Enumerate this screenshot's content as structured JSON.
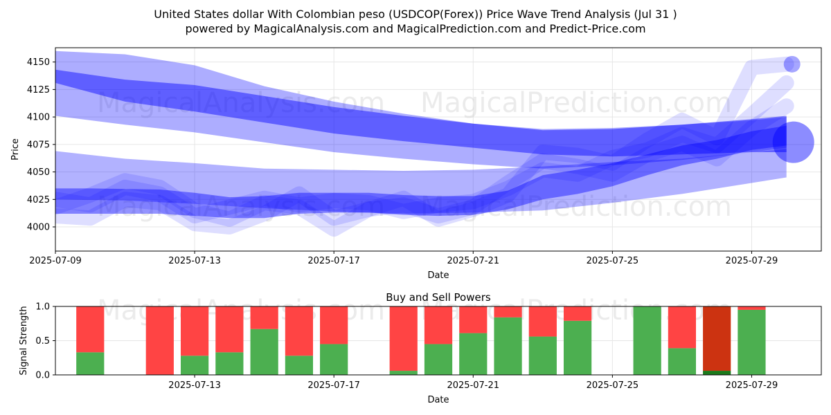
{
  "header": {
    "title_line1": "United States dollar With Colombian peso (USDCOP(Forex)) Price Wave Trend Analysis (Jul 31 )",
    "title_line2": "powered by MagicalAnalysis.com and MagicalPrediction.com and Predict-Price.com"
  },
  "watermarks": {
    "left": "MagicalAnalysis.com",
    "right": "MagicalPrediction.com"
  },
  "colors": {
    "wave": "#0000ff",
    "buy": "#4caf50",
    "sell": "#ff4444",
    "sell_dark": "#cc3311",
    "buy_dark": "#1b7a1b",
    "grid": "#e6e6e6"
  },
  "chart_data": [
    {
      "type": "area",
      "title": "Price Wave Trend",
      "xlabel": "Date",
      "ylabel": "Price",
      "xlim": [
        "2025-07-09",
        "2025-07-31"
      ],
      "ylim": [
        3978,
        4163
      ],
      "xticks": [
        "2025-07-09",
        "2025-07-13",
        "2025-07-17",
        "2025-07-21",
        "2025-07-25",
        "2025-07-29"
      ],
      "yticks": [
        4000,
        4025,
        4050,
        4075,
        4100,
        4125,
        4150
      ],
      "series": [
        {
          "name": "upper-wave-outer",
          "band": true,
          "x": [
            "2025-07-09",
            "2025-07-11",
            "2025-07-13",
            "2025-07-15",
            "2025-07-17",
            "2025-07-19",
            "2025-07-21",
            "2025-07-23",
            "2025-07-25",
            "2025-07-27",
            "2025-07-29",
            "2025-07-30"
          ],
          "upper": [
            4160,
            4157,
            4147,
            4128,
            4114,
            4103,
            4094,
            4089,
            4090,
            4093,
            4097,
            4100
          ],
          "lower": [
            4101,
            4093,
            4086,
            4077,
            4068,
            4062,
            4057,
            4053,
            4056,
            4061,
            4068,
            4072
          ]
        },
        {
          "name": "upper-wave-core",
          "band": true,
          "x": [
            "2025-07-09",
            "2025-07-11",
            "2025-07-13",
            "2025-07-15",
            "2025-07-17",
            "2025-07-19",
            "2025-07-21",
            "2025-07-23",
            "2025-07-25",
            "2025-07-27",
            "2025-07-29",
            "2025-07-30"
          ],
          "upper": [
            4143,
            4134,
            4129,
            4119,
            4109,
            4101,
            4094,
            4088,
            4089,
            4093,
            4098,
            4101
          ],
          "lower": [
            4131,
            4114,
            4105,
            4095,
            4085,
            4078,
            4072,
            4066,
            4064,
            4066,
            4068,
            4068
          ]
        },
        {
          "name": "lower-wave-outer",
          "band": true,
          "x": [
            "2025-07-09",
            "2025-07-11",
            "2025-07-13",
            "2025-07-15",
            "2025-07-17",
            "2025-07-19",
            "2025-07-21",
            "2025-07-23",
            "2025-07-25",
            "2025-07-27",
            "2025-07-29",
            "2025-07-30"
          ],
          "upper": [
            4069,
            4062,
            4058,
            4053,
            4052,
            4051,
            4052,
            4055,
            4059,
            4062,
            4068,
            4071
          ],
          "lower": [
            4025,
            4024,
            4021,
            4017,
            4014,
            4012,
            4013,
            4015,
            4022,
            4030,
            4040,
            4045
          ]
        },
        {
          "name": "lower-wave-core",
          "band": true,
          "x": [
            "2025-07-09",
            "2025-07-10",
            "2025-07-12",
            "2025-07-13",
            "2025-07-14",
            "2025-07-15",
            "2025-07-16",
            "2025-07-17",
            "2025-07-18",
            "2025-07-19",
            "2025-07-20",
            "2025-07-21",
            "2025-07-22",
            "2025-07-23",
            "2025-07-24",
            "2025-07-25",
            "2025-07-26",
            "2025-07-27",
            "2025-07-28",
            "2025-07-29",
            "2025-07-30"
          ],
          "upper": [
            4035,
            4035,
            4034,
            4031,
            4027,
            4028,
            4031,
            4031,
            4031,
            4029,
            4028,
            4028,
            4033,
            4047,
            4052,
            4058,
            4066,
            4074,
            4079,
            4087,
            4092
          ],
          "lower": [
            4012,
            4012,
            4012,
            4010,
            4008,
            4008,
            4012,
            4013,
            4013,
            4011,
            4010,
            4011,
            4016,
            4025,
            4030,
            4037,
            4047,
            4056,
            4062,
            4070,
            4074
          ]
        },
        {
          "name": "price-path-a",
          "x": [
            "2025-07-09",
            "2025-07-10",
            "2025-07-11",
            "2025-07-12",
            "2025-07-13",
            "2025-07-14",
            "2025-07-15",
            "2025-07-16",
            "2025-07-17",
            "2025-07-18",
            "2025-07-19",
            "2025-07-20",
            "2025-07-21",
            "2025-07-22",
            "2025-07-23",
            "2025-07-24",
            "2025-07-25",
            "2025-07-26",
            "2025-07-27",
            "2025-07-28",
            "2025-07-29",
            "2025-07-30"
          ],
          "y": [
            4018,
            4029,
            4042,
            4036,
            4015,
            4007,
            4022,
            4018,
            3998,
            4016,
            4026,
            4007,
            4016,
            4029,
            4068,
            4065,
            4058,
            4079,
            4097,
            4081,
            4145,
            4148
          ]
        },
        {
          "name": "price-path-b",
          "x": [
            "2025-07-09",
            "2025-07-10",
            "2025-07-11",
            "2025-07-12",
            "2025-07-13",
            "2025-07-14",
            "2025-07-15",
            "2025-07-16",
            "2025-07-17",
            "2025-07-18",
            "2025-07-19",
            "2025-07-20",
            "2025-07-21",
            "2025-07-22",
            "2025-07-23",
            "2025-07-24",
            "2025-07-25",
            "2025-07-26",
            "2025-07-27",
            "2025-07-28",
            "2025-07-29",
            "2025-07-30"
          ],
          "y": [
            4025,
            4020,
            4036,
            4030,
            4010,
            4018,
            4026,
            4020,
            4024,
            4022,
            4014,
            4020,
            4023,
            4035,
            4052,
            4048,
            4063,
            4070,
            4084,
            4074,
            4102,
            4131
          ]
        },
        {
          "name": "price-path-c",
          "x": [
            "2025-07-09",
            "2025-07-10",
            "2025-07-11",
            "2025-07-12",
            "2025-07-13",
            "2025-07-14",
            "2025-07-15",
            "2025-07-16",
            "2025-07-17",
            "2025-07-18",
            "2025-07-19",
            "2025-07-20",
            "2025-07-21",
            "2025-07-22",
            "2025-07-23",
            "2025-07-24",
            "2025-07-25",
            "2025-07-26",
            "2025-07-27",
            "2025-07-28",
            "2025-07-29",
            "2025-07-30"
          ],
          "y": [
            4010,
            4008,
            4025,
            4022,
            4003,
            4000,
            4012,
            4030,
            4008,
            4016,
            4020,
            4010,
            4018,
            4040,
            4060,
            4055,
            4048,
            4066,
            4076,
            4062,
            4090,
            4110
          ]
        }
      ]
    },
    {
      "type": "bar",
      "title": "Buy and Sell Powers",
      "xlabel": "Date",
      "ylabel": "Signal Strength",
      "xlim": [
        "2025-07-09",
        "2025-07-31"
      ],
      "ylim": [
        0,
        1.0
      ],
      "xticks": [
        "2025-07-13",
        "2025-07-17",
        "2025-07-21",
        "2025-07-25",
        "2025-07-29"
      ],
      "yticks": [
        0.0,
        0.5,
        1.0
      ],
      "categories": [
        "2025-07-10",
        "2025-07-12",
        "2025-07-13",
        "2025-07-14",
        "2025-07-15",
        "2025-07-16",
        "2025-07-17",
        "2025-07-19",
        "2025-07-20",
        "2025-07-21",
        "2025-07-22",
        "2025-07-23",
        "2025-07-24",
        "2025-07-26",
        "2025-07-27",
        "2025-07-28",
        "2025-07-29"
      ],
      "series": [
        {
          "name": "Buy",
          "values": [
            0.33,
            0.0,
            0.28,
            0.33,
            0.67,
            0.28,
            0.45,
            0.06,
            0.45,
            0.61,
            0.84,
            0.56,
            0.79,
            1.0,
            0.39,
            0.06,
            0.95
          ]
        },
        {
          "name": "Sell",
          "values": [
            0.67,
            1.0,
            0.72,
            0.67,
            0.33,
            0.72,
            0.55,
            0.94,
            0.55,
            0.39,
            0.16,
            0.44,
            0.21,
            0.0,
            0.61,
            0.94,
            0.05
          ]
        }
      ],
      "highlight_index": 15
    }
  ]
}
